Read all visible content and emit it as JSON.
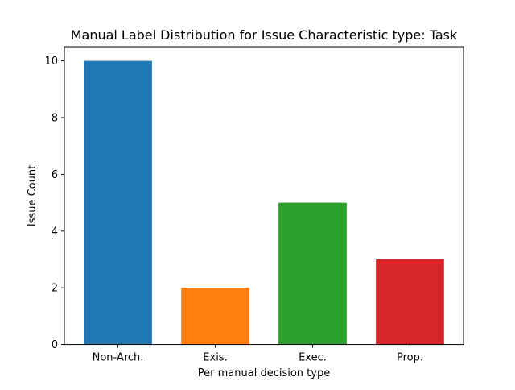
{
  "chart_data": {
    "type": "bar",
    "title": "Manual Label Distribution for Issue Characteristic type: Task",
    "xlabel": "Per manual decision type",
    "ylabel": "Issue Count",
    "categories": [
      "Non-Arch.",
      "Exis.",
      "Exec.",
      "Prop."
    ],
    "values": [
      10,
      2,
      5,
      3
    ],
    "colors": [
      "#1f77b4",
      "#ff7f0e",
      "#2ca02c",
      "#d62728"
    ],
    "ylim": [
      0,
      10.5
    ],
    "yticks": [
      0,
      2,
      4,
      6,
      8,
      10
    ],
    "grid": false,
    "legend": "none"
  }
}
